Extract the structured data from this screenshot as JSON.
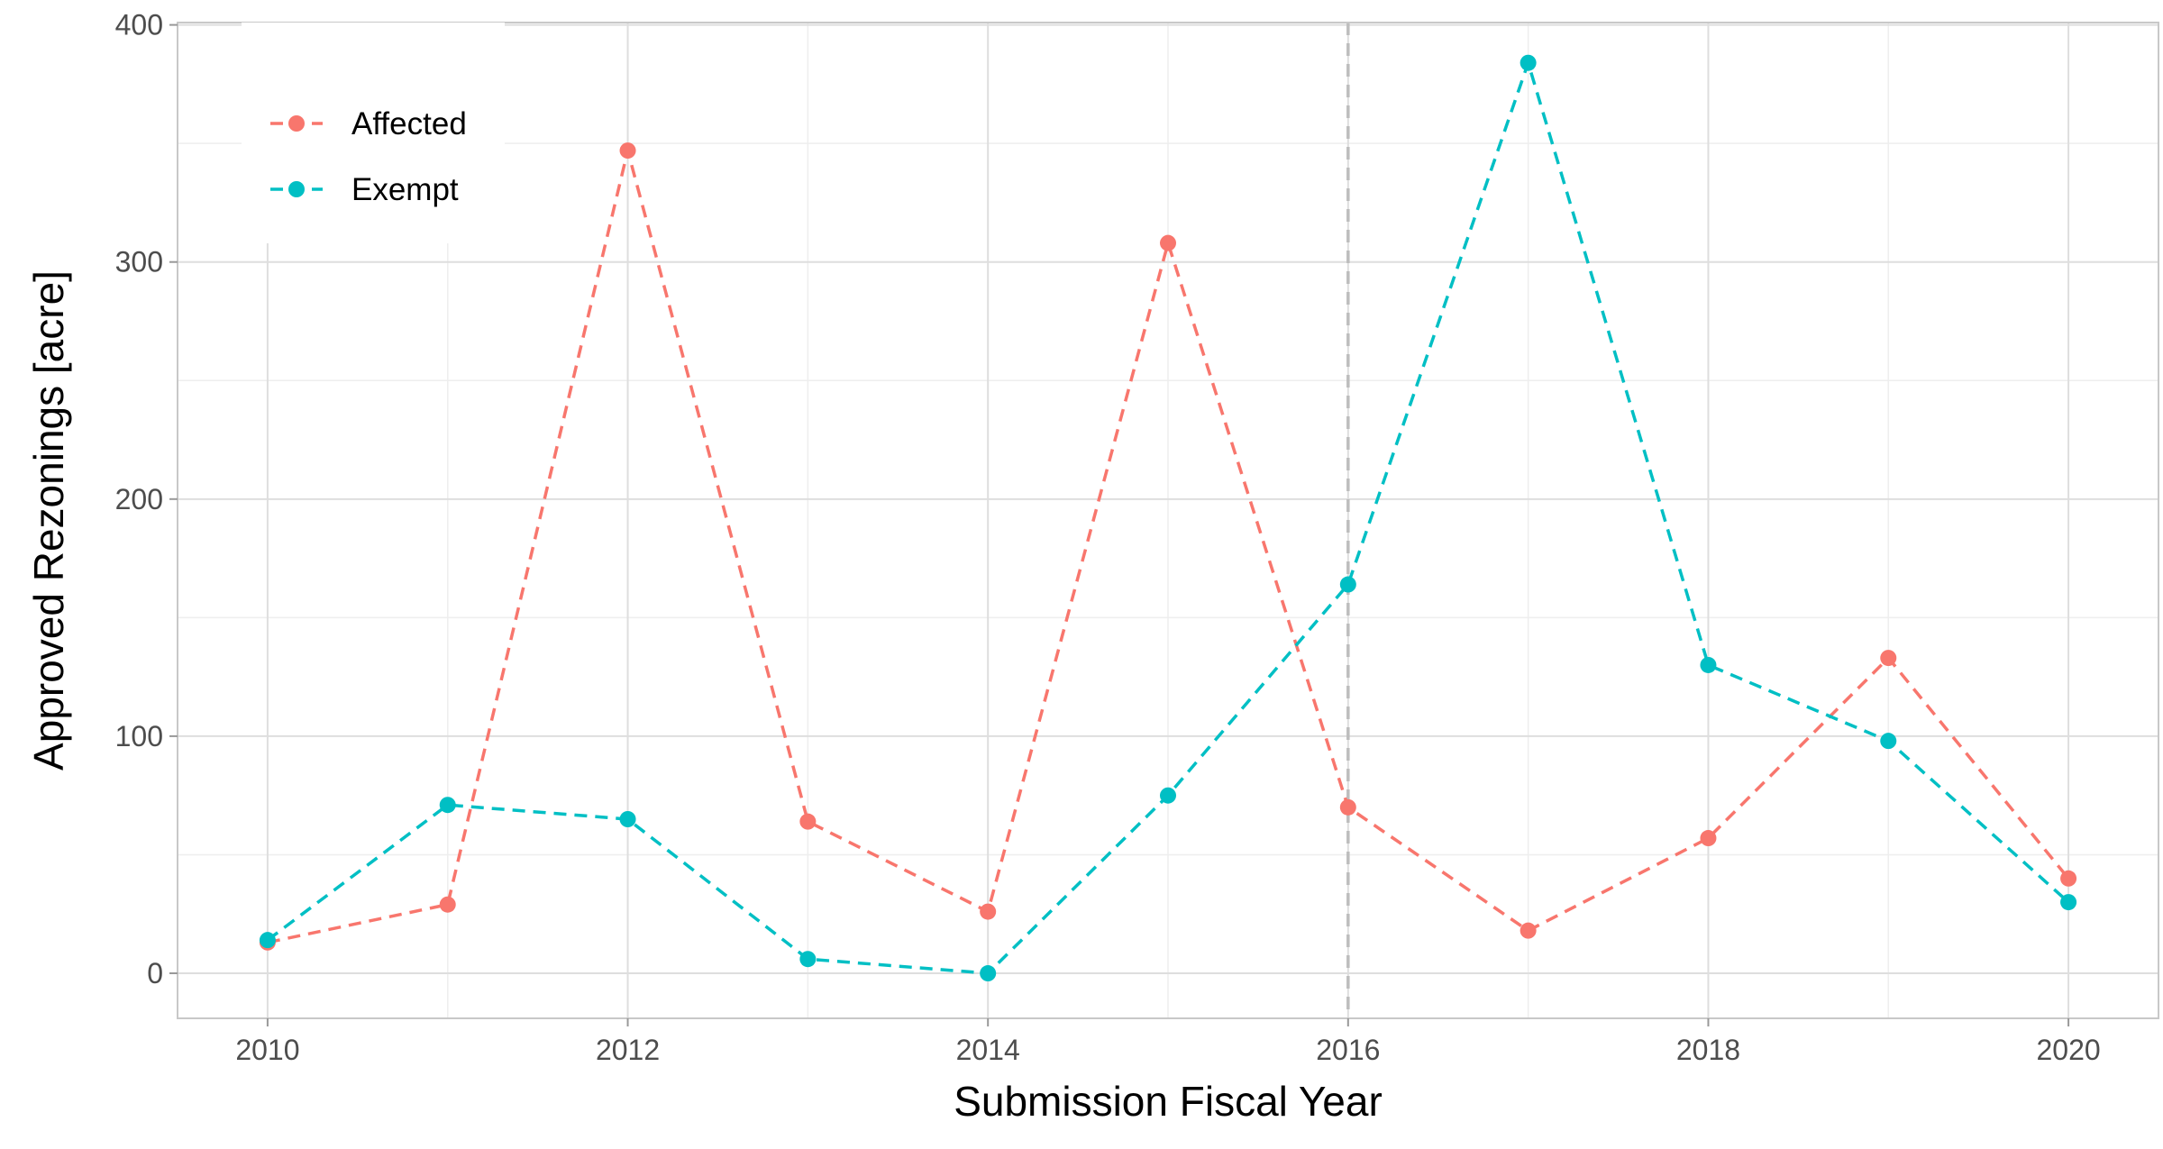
{
  "chart_data": {
    "type": "line",
    "xlabel": "Submission Fiscal Year",
    "ylabel": "Approved Rezonings [acre]",
    "x": [
      2010,
      2011,
      2012,
      2013,
      2014,
      2015,
      2016,
      2017,
      2018,
      2019,
      2020
    ],
    "xlim": [
      2009.5,
      2020.5
    ],
    "ylim": [
      -19,
      401
    ],
    "x_ticks": [
      "2010",
      "2012",
      "2014",
      "2016",
      "2018",
      "2020"
    ],
    "y_ticks": [
      "0",
      "100",
      "200",
      "300",
      "400"
    ],
    "grid": true,
    "reference_line": {
      "x": 2016,
      "style": "dashed",
      "color": "#bdbdbd"
    },
    "legend": {
      "placement": "top-left"
    },
    "series": [
      {
        "name": "Affected",
        "color": "#F8766D",
        "line_style": "dashed",
        "marker": "circle",
        "values": [
          13,
          29,
          347,
          64,
          26,
          308,
          70,
          18,
          57,
          133,
          40
        ]
      },
      {
        "name": "Exempt",
        "color": "#00BFC4",
        "line_style": "dashed",
        "marker": "circle",
        "values": [
          14,
          71,
          65,
          6,
          0,
          75,
          164,
          384,
          130,
          98,
          30
        ]
      }
    ]
  }
}
